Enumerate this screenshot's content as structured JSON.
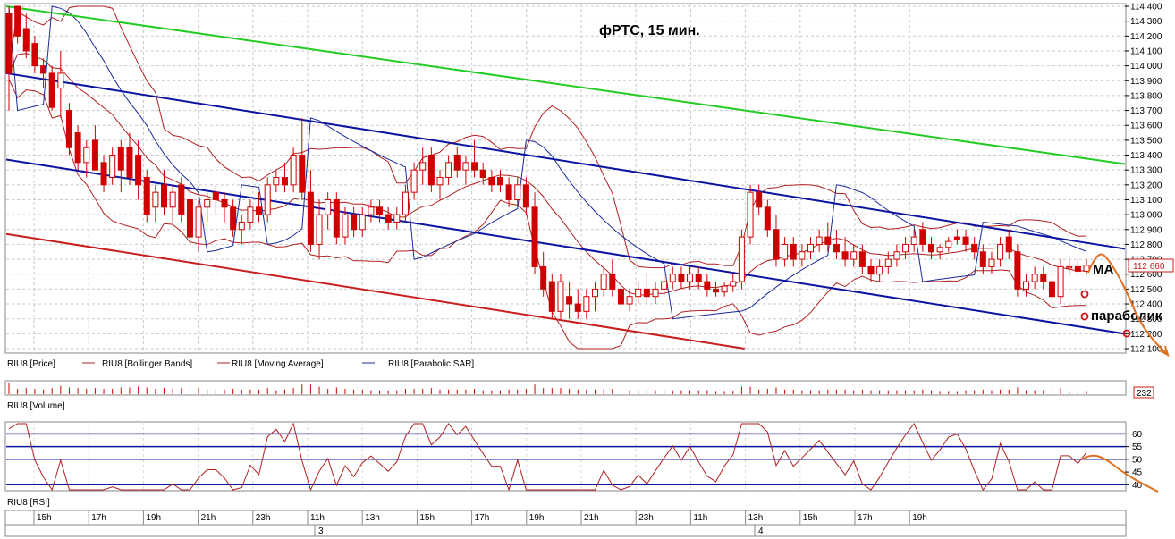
{
  "chart_data": {
    "type": "candlestick",
    "title": "фРТС, 15 мин.",
    "price_axis": {
      "ylim": [
        112100,
        114400
      ],
      "ticks": [
        "114 400",
        "114 300",
        "114 200",
        "114 100",
        "114 000",
        "113 900",
        "113 800",
        "113 700",
        "113 600",
        "113 500",
        "113 400",
        "113 300",
        "113 200",
        "113 100",
        "113 000",
        "112 900",
        "112 800",
        "112 700",
        "112 600",
        "112 500",
        "112 400",
        "112 300",
        "112 200",
        "112 100"
      ],
      "tick_values": [
        114400,
        114300,
        114200,
        114100,
        114000,
        113900,
        113800,
        113700,
        113600,
        113500,
        113400,
        113300,
        113200,
        113100,
        113000,
        112900,
        112800,
        112700,
        112600,
        112500,
        112400,
        112300,
        112200,
        112100
      ],
      "last_price_label": "112 660",
      "last_price": 112660
    },
    "legend": [
      {
        "label": "RIU8 [Price]",
        "color": "#d00000"
      },
      {
        "label": "RIU8 [Bollinger Bands]",
        "color": "#b02020"
      },
      {
        "label": "RIU8 [Moving Average]",
        "color": "#b02020"
      },
      {
        "label": "RIU8 [Parabolic SAR]",
        "color": "#1a2a9c"
      }
    ],
    "annotations": {
      "ma_label": "MA",
      "parabolic_label": "параболик"
    },
    "trend_lines": [
      {
        "color": "#22cc22",
        "from": [
          0,
          114400
        ],
        "to": [
          1,
          113340
        ]
      },
      {
        "color": "#0a14a0",
        "from": [
          0,
          113950
        ],
        "to": [
          1,
          112770
        ]
      },
      {
        "color": "#0a14a0",
        "from": [
          0,
          113370
        ],
        "to": [
          1,
          112200
        ]
      },
      {
        "color": "#c81e1e",
        "from": [
          0,
          112870
        ],
        "to": [
          0.66,
          112100
        ]
      }
    ],
    "volume": {
      "label": "RIU8 [Volume]",
      "value_label": "232",
      "value": 232
    },
    "rsi": {
      "label": "RIU8 [RSI]",
      "ticks": [
        "60",
        "55",
        "50",
        "45",
        "40"
      ],
      "tick_values": [
        60,
        55,
        50,
        45,
        40
      ],
      "levels": [
        60,
        55,
        50,
        40
      ],
      "range": [
        38,
        64
      ]
    },
    "time_axis": {
      "labels": [
        "15h",
        "17h",
        "19h",
        "21h",
        "23h",
        "11h",
        "13h",
        "15h",
        "17h",
        "19h",
        "21h",
        "23h",
        "11h",
        "13h",
        "15h",
        "17h",
        "19h"
      ],
      "dates": [
        "3",
        "4"
      ]
    },
    "candles": [
      {
        "o": 114350,
        "h": 114400,
        "l": 113700,
        "c": 113950
      },
      {
        "o": 114400,
        "h": 114400,
        "l": 114150,
        "c": 114200
      },
      {
        "o": 114250,
        "h": 114350,
        "l": 114050,
        "c": 114100
      },
      {
        "o": 114150,
        "h": 114200,
        "l": 113950,
        "c": 114000
      },
      {
        "o": 114000,
        "h": 114050,
        "l": 113850,
        "c": 113950
      },
      {
        "o": 113950,
        "h": 114000,
        "l": 113700,
        "c": 113720
      },
      {
        "o": 113850,
        "h": 114100,
        "l": 113650,
        "c": 113950
      },
      {
        "o": 113700,
        "h": 113750,
        "l": 113400,
        "c": 113450
      },
      {
        "o": 113550,
        "h": 113600,
        "l": 113300,
        "c": 113350
      },
      {
        "o": 113350,
        "h": 113500,
        "l": 113250,
        "c": 113450
      },
      {
        "o": 113500,
        "h": 113600,
        "l": 113300,
        "c": 113300
      },
      {
        "o": 113350,
        "h": 113400,
        "l": 113150,
        "c": 113200
      },
      {
        "o": 113250,
        "h": 113450,
        "l": 113200,
        "c": 113400
      },
      {
        "o": 113450,
        "h": 113500,
        "l": 113150,
        "c": 113300
      },
      {
        "o": 113450,
        "h": 113550,
        "l": 113200,
        "c": 113250
      },
      {
        "o": 113400,
        "h": 113500,
        "l": 113100,
        "c": 113200
      },
      {
        "o": 113250,
        "h": 113300,
        "l": 112950,
        "c": 113000
      },
      {
        "o": 113050,
        "h": 113200,
        "l": 112950,
        "c": 113150
      },
      {
        "o": 113200,
        "h": 113300,
        "l": 113000,
        "c": 113050
      },
      {
        "o": 113050,
        "h": 113200,
        "l": 112950,
        "c": 113150
      },
      {
        "o": 113200,
        "h": 113250,
        "l": 112950,
        "c": 113000
      },
      {
        "o": 113100,
        "h": 113150,
        "l": 112800,
        "c": 112850
      },
      {
        "o": 112850,
        "h": 113100,
        "l": 112750,
        "c": 113050
      },
      {
        "o": 113050,
        "h": 113150,
        "l": 112950,
        "c": 113100
      },
      {
        "o": 113150,
        "h": 113200,
        "l": 113000,
        "c": 113100
      },
      {
        "o": 113100,
        "h": 113150,
        "l": 112950,
        "c": 113050
      },
      {
        "o": 113050,
        "h": 113100,
        "l": 112850,
        "c": 112900
      },
      {
        "o": 112900,
        "h": 113000,
        "l": 112800,
        "c": 112950
      },
      {
        "o": 112950,
        "h": 113100,
        "l": 112900,
        "c": 113050
      },
      {
        "o": 113050,
        "h": 113150,
        "l": 112950,
        "c": 113000
      },
      {
        "o": 113000,
        "h": 113250,
        "l": 112950,
        "c": 113200
      },
      {
        "o": 113200,
        "h": 113300,
        "l": 113150,
        "c": 113250
      },
      {
        "o": 113250,
        "h": 113350,
        "l": 113150,
        "c": 113200
      },
      {
        "o": 113200,
        "h": 113450,
        "l": 113150,
        "c": 113400
      },
      {
        "o": 113400,
        "h": 113650,
        "l": 113100,
        "c": 113150
      },
      {
        "o": 113150,
        "h": 113300,
        "l": 112750,
        "c": 112800
      },
      {
        "o": 112800,
        "h": 113100,
        "l": 112700,
        "c": 113000
      },
      {
        "o": 113000,
        "h": 113150,
        "l": 112900,
        "c": 113100
      },
      {
        "o": 113100,
        "h": 113150,
        "l": 112800,
        "c": 112850
      },
      {
        "o": 112850,
        "h": 113050,
        "l": 112800,
        "c": 113000
      },
      {
        "o": 113000,
        "h": 113050,
        "l": 112850,
        "c": 112900
      },
      {
        "o": 112900,
        "h": 113050,
        "l": 112850,
        "c": 113000
      },
      {
        "o": 113000,
        "h": 113100,
        "l": 112950,
        "c": 113050
      },
      {
        "o": 113050,
        "h": 113100,
        "l": 112950,
        "c": 113000
      },
      {
        "o": 113000,
        "h": 113050,
        "l": 112900,
        "c": 112950
      },
      {
        "o": 112950,
        "h": 113050,
        "l": 112900,
        "c": 113000
      },
      {
        "o": 113000,
        "h": 113200,
        "l": 112950,
        "c": 113150
      },
      {
        "o": 113150,
        "h": 113350,
        "l": 113100,
        "c": 113300
      },
      {
        "o": 113300,
        "h": 113450,
        "l": 113200,
        "c": 113350
      },
      {
        "o": 113400,
        "h": 113450,
        "l": 113150,
        "c": 113200
      },
      {
        "o": 113200,
        "h": 113300,
        "l": 113100,
        "c": 113250
      },
      {
        "o": 113250,
        "h": 113400,
        "l": 113200,
        "c": 113350
      },
      {
        "o": 113400,
        "h": 113450,
        "l": 113250,
        "c": 113300
      },
      {
        "o": 113300,
        "h": 113400,
        "l": 113200,
        "c": 113350
      },
      {
        "o": 113350,
        "h": 113500,
        "l": 113250,
        "c": 113300
      },
      {
        "o": 113300,
        "h": 113350,
        "l": 113200,
        "c": 113250
      },
      {
        "o": 113250,
        "h": 113300,
        "l": 113150,
        "c": 113200
      },
      {
        "o": 113250,
        "h": 113300,
        "l": 113150,
        "c": 113200
      },
      {
        "o": 113200,
        "h": 113250,
        "l": 113050,
        "c": 113100
      },
      {
        "o": 113100,
        "h": 113250,
        "l": 113050,
        "c": 113200
      },
      {
        "o": 113200,
        "h": 113250,
        "l": 113000,
        "c": 113050
      },
      {
        "o": 113050,
        "h": 113150,
        "l": 112600,
        "c": 112650
      },
      {
        "o": 112650,
        "h": 112750,
        "l": 112450,
        "c": 112500
      },
      {
        "o": 112550,
        "h": 112600,
        "l": 112300,
        "c": 112350
      },
      {
        "o": 112350,
        "h": 112600,
        "l": 112300,
        "c": 112550
      },
      {
        "o": 112450,
        "h": 112550,
        "l": 112300,
        "c": 112400
      },
      {
        "o": 112400,
        "h": 112500,
        "l": 112300,
        "c": 112350
      },
      {
        "o": 112350,
        "h": 112500,
        "l": 112300,
        "c": 112450
      },
      {
        "o": 112450,
        "h": 112550,
        "l": 112350,
        "c": 112500
      },
      {
        "o": 112500,
        "h": 112650,
        "l": 112450,
        "c": 112600
      },
      {
        "o": 112600,
        "h": 112700,
        "l": 112450,
        "c": 112500
      },
      {
        "o": 112500,
        "h": 112550,
        "l": 112350,
        "c": 112400
      },
      {
        "o": 112400,
        "h": 112500,
        "l": 112350,
        "c": 112450
      },
      {
        "o": 112450,
        "h": 112550,
        "l": 112400,
        "c": 112500
      },
      {
        "o": 112500,
        "h": 112600,
        "l": 112400,
        "c": 112450
      },
      {
        "o": 112450,
        "h": 112550,
        "l": 112400,
        "c": 112500
      },
      {
        "o": 112500,
        "h": 112600,
        "l": 112450,
        "c": 112550
      },
      {
        "o": 112550,
        "h": 112650,
        "l": 112500,
        "c": 112600
      },
      {
        "o": 112600,
        "h": 112650,
        "l": 112500,
        "c": 112550
      },
      {
        "o": 112550,
        "h": 112650,
        "l": 112500,
        "c": 112600
      },
      {
        "o": 112600,
        "h": 112650,
        "l": 112500,
        "c": 112550
      },
      {
        "o": 112550,
        "h": 112600,
        "l": 112450,
        "c": 112500
      },
      {
        "o": 112500,
        "h": 112550,
        "l": 112450,
        "c": 112480
      },
      {
        "o": 112480,
        "h": 112550,
        "l": 112450,
        "c": 112520
      },
      {
        "o": 112520,
        "h": 112600,
        "l": 112480,
        "c": 112550
      },
      {
        "o": 112550,
        "h": 112900,
        "l": 112500,
        "c": 112850
      },
      {
        "o": 112850,
        "h": 113200,
        "l": 112800,
        "c": 113150
      },
      {
        "o": 113150,
        "h": 113200,
        "l": 113000,
        "c": 113050
      },
      {
        "o": 113050,
        "h": 113100,
        "l": 112850,
        "c": 112900
      },
      {
        "o": 112900,
        "h": 113000,
        "l": 112650,
        "c": 112700
      },
      {
        "o": 112700,
        "h": 112850,
        "l": 112650,
        "c": 112800
      },
      {
        "o": 112800,
        "h": 112850,
        "l": 112650,
        "c": 112700
      },
      {
        "o": 112700,
        "h": 112800,
        "l": 112650,
        "c": 112750
      },
      {
        "o": 112750,
        "h": 112850,
        "l": 112700,
        "c": 112800
      },
      {
        "o": 112800,
        "h": 112900,
        "l": 112750,
        "c": 112850
      },
      {
        "o": 112850,
        "h": 112950,
        "l": 112750,
        "c": 112800
      },
      {
        "o": 112800,
        "h": 112900,
        "l": 112700,
        "c": 112750
      },
      {
        "o": 112750,
        "h": 112850,
        "l": 112650,
        "c": 112700
      },
      {
        "o": 112700,
        "h": 112800,
        "l": 112650,
        "c": 112750
      },
      {
        "o": 112750,
        "h": 112800,
        "l": 112600,
        "c": 112650
      },
      {
        "o": 112650,
        "h": 112700,
        "l": 112550,
        "c": 112600
      },
      {
        "o": 112600,
        "h": 112700,
        "l": 112550,
        "c": 112650
      },
      {
        "o": 112650,
        "h": 112750,
        "l": 112600,
        "c": 112700
      },
      {
        "o": 112700,
        "h": 112800,
        "l": 112650,
        "c": 112750
      },
      {
        "o": 112750,
        "h": 112850,
        "l": 112700,
        "c": 112800
      },
      {
        "o": 112800,
        "h": 112900,
        "l": 112750,
        "c": 112850
      },
      {
        "o": 112900,
        "h": 112950,
        "l": 112750,
        "c": 112800
      },
      {
        "o": 112800,
        "h": 112850,
        "l": 112700,
        "c": 112750
      },
      {
        "o": 112750,
        "h": 112800,
        "l": 112700,
        "c": 112780
      },
      {
        "o": 112780,
        "h": 112850,
        "l": 112750,
        "c": 112820
      },
      {
        "o": 112850,
        "h": 112900,
        "l": 112800,
        "c": 112830
      },
      {
        "o": 112850,
        "h": 112900,
        "l": 112750,
        "c": 112800
      },
      {
        "o": 112800,
        "h": 112850,
        "l": 112700,
        "c": 112750
      },
      {
        "o": 112750,
        "h": 112800,
        "l": 112600,
        "c": 112650
      },
      {
        "o": 112650,
        "h": 112750,
        "l": 112600,
        "c": 112700
      },
      {
        "o": 112700,
        "h": 112850,
        "l": 112650,
        "c": 112800
      },
      {
        "o": 112850,
        "h": 112900,
        "l": 112700,
        "c": 112750
      },
      {
        "o": 112750,
        "h": 112800,
        "l": 112450,
        "c": 112500
      },
      {
        "o": 112500,
        "h": 112600,
        "l": 112450,
        "c": 112550
      },
      {
        "o": 112550,
        "h": 112650,
        "l": 112500,
        "c": 112600
      },
      {
        "o": 112600,
        "h": 112650,
        "l": 112500,
        "c": 112550
      },
      {
        "o": 112550,
        "h": 112650,
        "l": 112400,
        "c": 112450
      },
      {
        "o": 112450,
        "h": 112700,
        "l": 112400,
        "c": 112650
      },
      {
        "o": 112650,
        "h": 112700,
        "l": 112600,
        "c": 112650
      },
      {
        "o": 112650,
        "h": 112700,
        "l": 112600,
        "c": 112620
      },
      {
        "o": 112620,
        "h": 112700,
        "l": 112600,
        "c": 112660
      }
    ]
  }
}
